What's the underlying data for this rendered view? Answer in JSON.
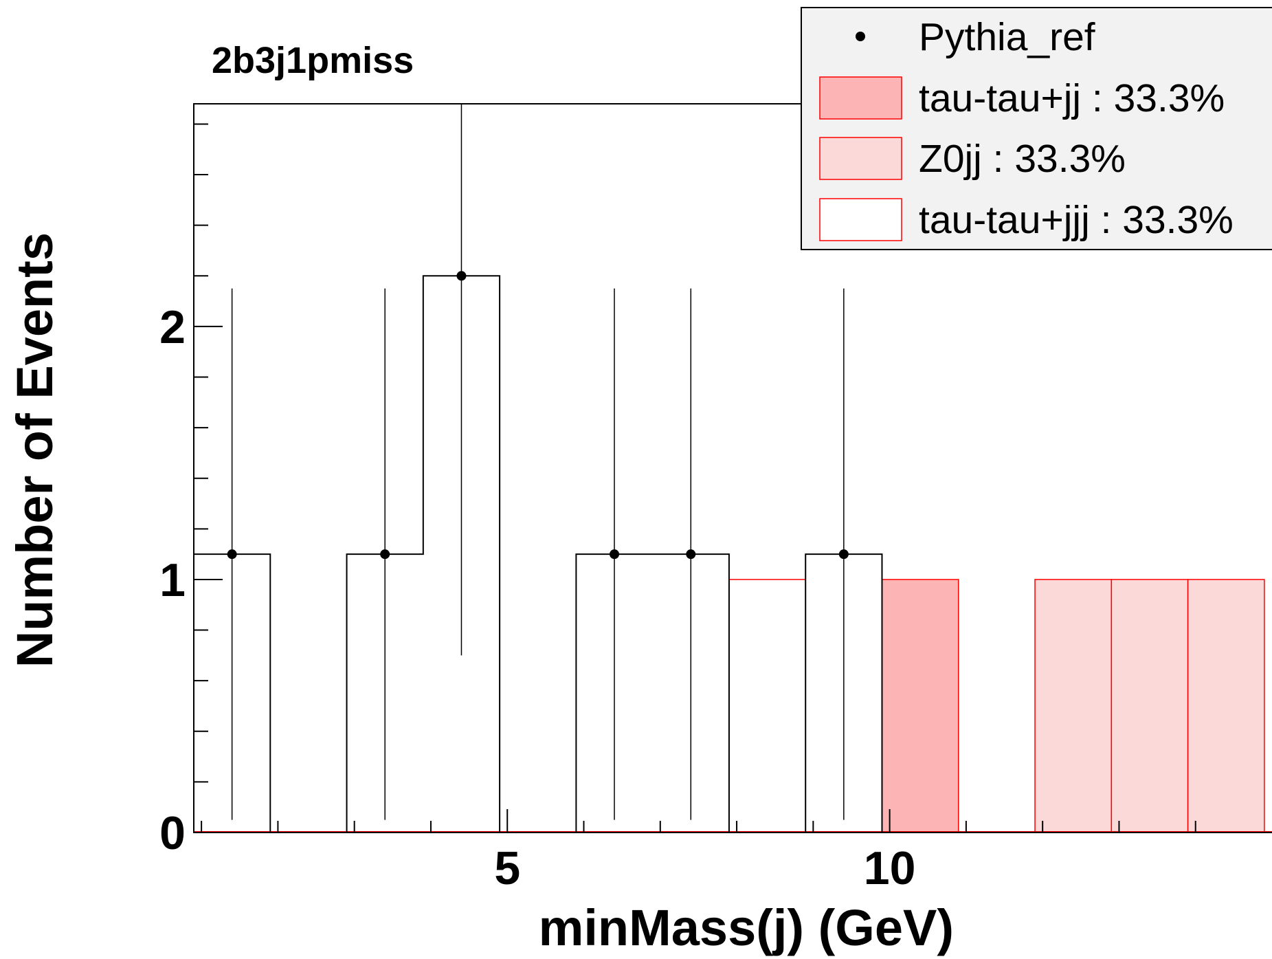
{
  "chart_data": {
    "type": "bar",
    "title": "2b3j1pmiss",
    "xlabel": "minMass(j) (GeV)",
    "ylabel": "Number of Events",
    "xlim": [
      0.9,
      15.0
    ],
    "ylim": [
      0,
      2.88
    ],
    "x_ticks": [
      5,
      10
    ],
    "y_ticks": [
      0,
      1,
      2
    ],
    "bin_edges": [
      0.9,
      1.9,
      2.9,
      3.9,
      4.9,
      5.9,
      6.9,
      7.9,
      8.9,
      9.9,
      10.9,
      11.9,
      12.9,
      13.9,
      14.9
    ],
    "stack": [
      {
        "name": "tau-tau+jj : 33.3%",
        "color": "#fcb4b4",
        "values": [
          0,
          0,
          0,
          0,
          0,
          0,
          0,
          0,
          0,
          1,
          0,
          0,
          0,
          0
        ]
      },
      {
        "name": "Z0jj : 33.3%",
        "color": "#fcd9d9",
        "values": [
          0,
          0,
          0,
          0,
          0,
          0,
          0,
          0,
          0,
          0,
          0,
          1,
          1,
          1
        ]
      },
      {
        "name": "tau-tau+jjj : 33.3%",
        "color": "#ffffff",
        "values": [
          0,
          0,
          0,
          0,
          0,
          0,
          0,
          1,
          0,
          0,
          0,
          0,
          0,
          0
        ]
      }
    ],
    "reference": {
      "name": "Pythia_ref",
      "values": [
        1.1,
        0,
        1.1,
        2.2,
        0,
        1.1,
        1.1,
        0,
        1.1,
        0,
        0,
        0,
        0,
        0
      ],
      "errors_low": [
        1.05,
        0,
        1.05,
        1.5,
        0,
        1.05,
        1.05,
        0,
        1.05,
        0,
        0,
        0,
        0,
        0
      ],
      "errors_high": [
        1.05,
        0,
        1.05,
        1.5,
        0,
        1.05,
        1.05,
        0,
        1.05,
        0,
        0,
        0,
        0,
        0
      ]
    },
    "legend_position": "top-right",
    "grid": false
  }
}
